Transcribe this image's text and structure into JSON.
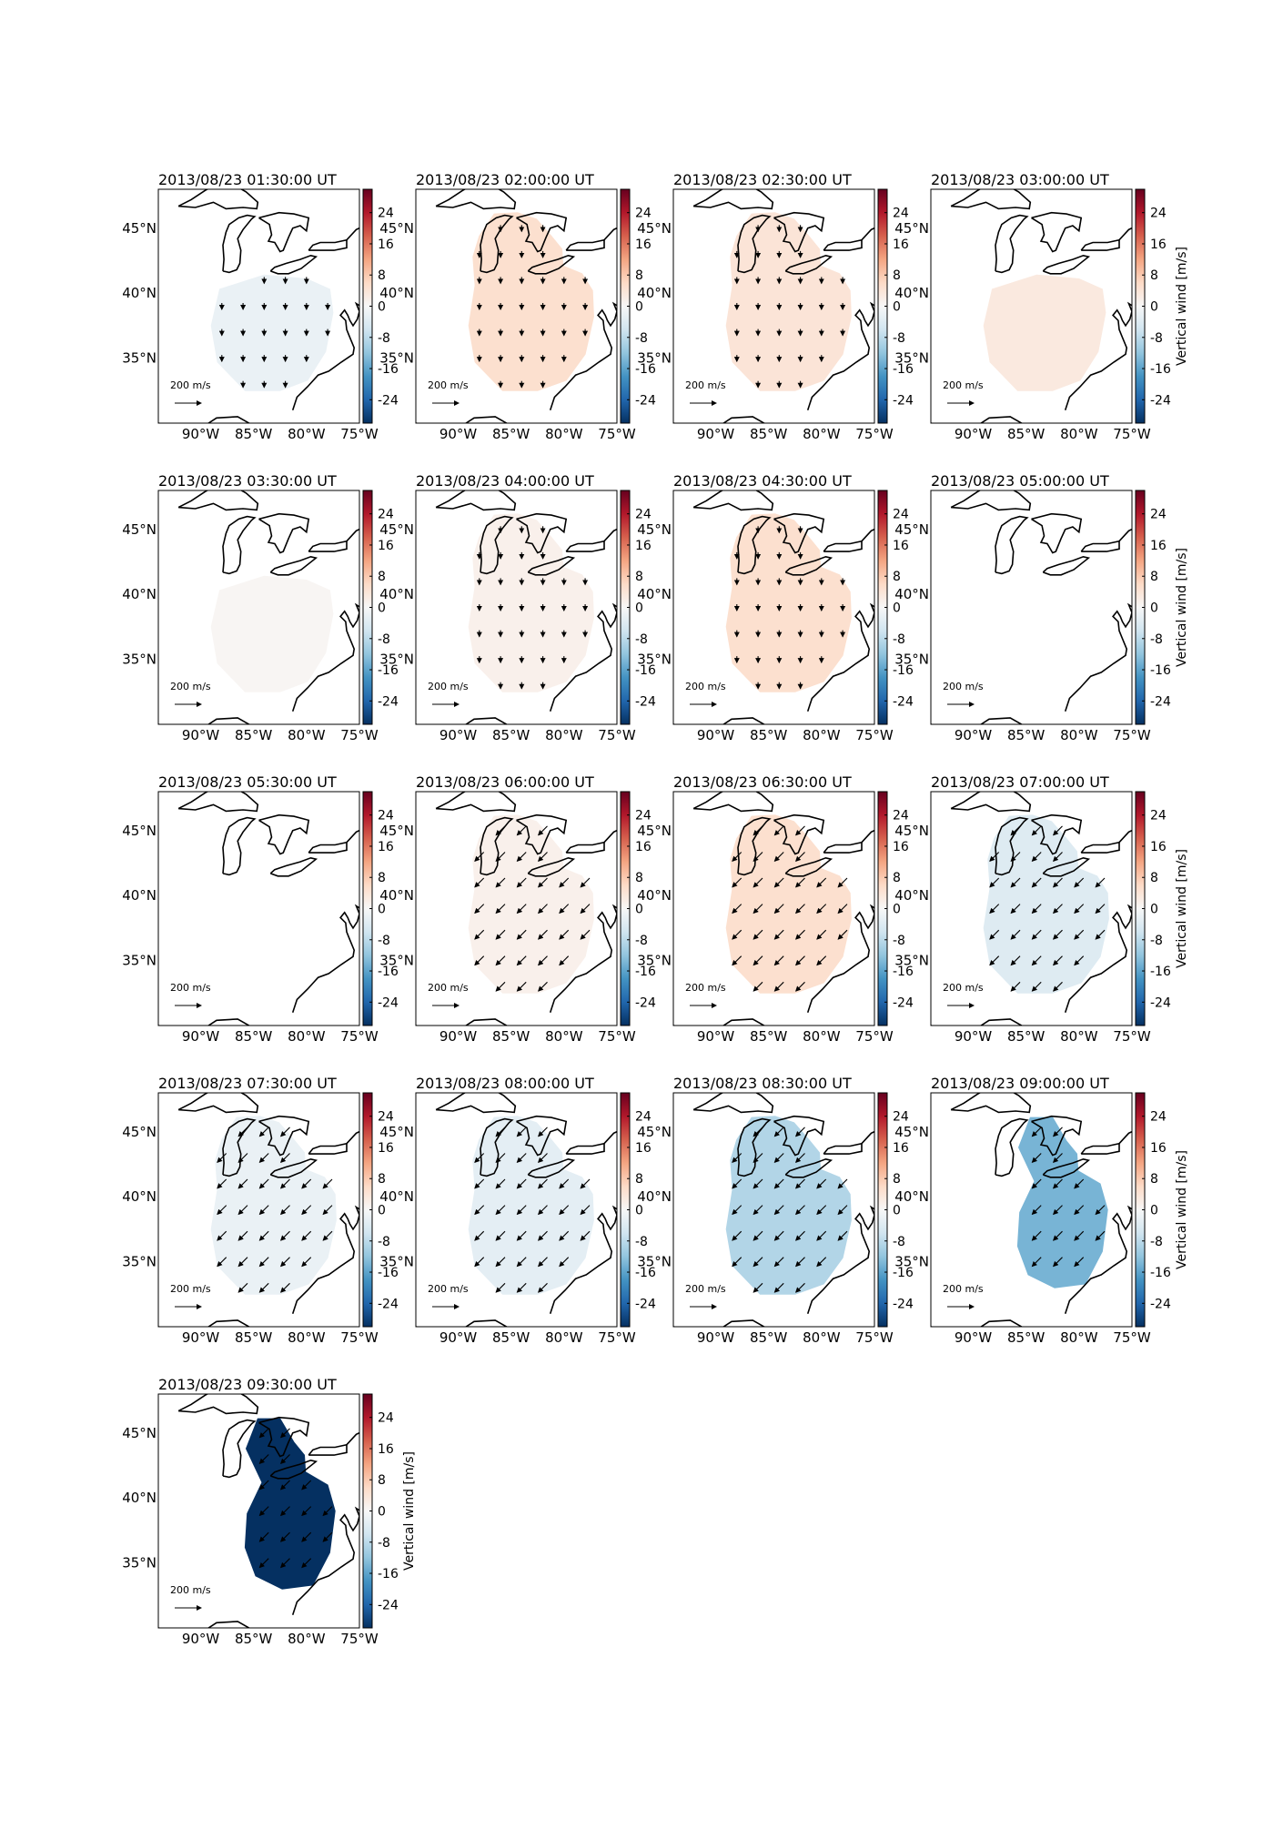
{
  "figure": {
    "colorbar_label": "Vertical wind [m/s]",
    "scale_arrow_label": "200 m/s",
    "lon_ticks": [
      "90°W",
      "85°W",
      "80°W",
      "75°W"
    ],
    "lat_ticks": [
      "45°N",
      "40°N",
      "35°N"
    ],
    "colorbar_ticks": [
      "24",
      "16",
      "8",
      "0",
      "-8",
      "-16",
      "-24"
    ],
    "colormap": [
      "#053061",
      "#2166ac",
      "#4393c3",
      "#92c5de",
      "#d1e5f0",
      "#f7f7f7",
      "#fddbc7",
      "#f4a582",
      "#d6604d",
      "#b2182b",
      "#67001f"
    ],
    "coast_color": "#000000"
  },
  "chart_data": {
    "type": "heatmap",
    "variable": "Vertical wind [m/s]",
    "color_range": [
      -30,
      30
    ],
    "lon_range": [
      -94,
      -75
    ],
    "lat_range": [
      30,
      48
    ],
    "panels": [
      {
        "title": "2013/08/23 01:30:00 UT",
        "value": -2,
        "region": "south",
        "arrows": "s"
      },
      {
        "title": "2013/08/23 02:00:00 UT",
        "value": 5,
        "region": "full",
        "arrows": "s"
      },
      {
        "title": "2013/08/23 02:30:00 UT",
        "value": 4,
        "region": "full",
        "arrows": "s"
      },
      {
        "title": "2013/08/23 03:00:00 UT",
        "value": 3,
        "region": "south",
        "arrows": "none"
      },
      {
        "title": "2013/08/23 03:30:00 UT",
        "value": 0.5,
        "region": "south",
        "arrows": "none"
      },
      {
        "title": "2013/08/23 04:00:00 UT",
        "value": 1.5,
        "region": "full",
        "arrows": "s"
      },
      {
        "title": "2013/08/23 04:30:00 UT",
        "value": 5,
        "region": "full",
        "arrows": "s"
      },
      {
        "title": "2013/08/23 05:00:00 UT",
        "value": 0,
        "region": "none",
        "arrows": "none"
      },
      {
        "title": "2013/08/23 05:30:00 UT",
        "value": 0,
        "region": "none",
        "arrows": "none"
      },
      {
        "title": "2013/08/23 06:00:00 UT",
        "value": 1.5,
        "region": "full",
        "arrows": "sw"
      },
      {
        "title": "2013/08/23 06:30:00 UT",
        "value": 5,
        "region": "full",
        "arrows": "sw"
      },
      {
        "title": "2013/08/23 07:00:00 UT",
        "value": -4,
        "region": "full",
        "arrows": "sw"
      },
      {
        "title": "2013/08/23 07:30:00 UT",
        "value": -2,
        "region": "full",
        "arrows": "sw"
      },
      {
        "title": "2013/08/23 08:00:00 UT",
        "value": -3,
        "region": "full",
        "arrows": "sw"
      },
      {
        "title": "2013/08/23 08:30:00 UT",
        "value": -9,
        "region": "full",
        "arrows": "sw"
      },
      {
        "title": "2013/08/23 09:00:00 UT",
        "value": -14,
        "region": "east",
        "arrows": "sw"
      },
      {
        "title": "2013/08/23 09:30:00 UT",
        "value": -30,
        "region": "east",
        "arrows": "sw"
      }
    ]
  }
}
